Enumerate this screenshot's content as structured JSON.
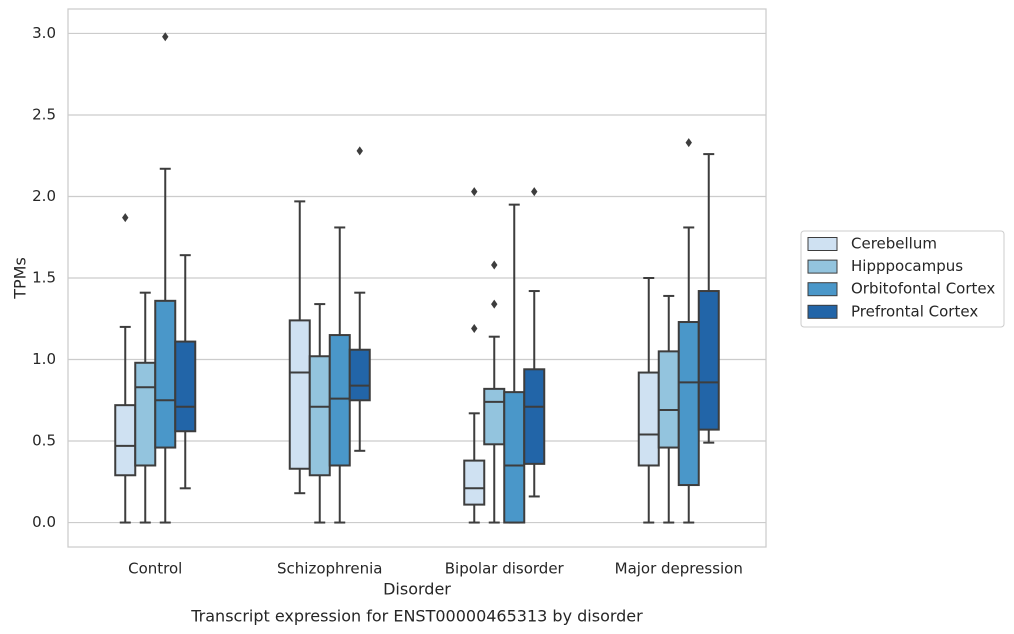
{
  "chart_data": {
    "type": "box",
    "xlabel": "Disorder",
    "ylabel": "TPMs",
    "caption": "Transcript expression for ENST00000465313 by disorder",
    "ylim": [
      -0.15,
      3.15
    ],
    "yticks": [
      "0.0",
      "0.5",
      "1.0",
      "1.5",
      "2.0",
      "2.5",
      "3.0"
    ],
    "grid": "horizontal",
    "legend_position": "right",
    "categories": [
      "Control",
      "Schizophrenia",
      "Bipolar disorder",
      "Major depression"
    ],
    "series": [
      {
        "name": "Cerebellum",
        "color": "#cfe1f2",
        "boxes": [
          {
            "whisker_low": 0.0,
            "q1": 0.29,
            "median": 0.47,
            "q3": 0.72,
            "whisker_high": 1.2,
            "outliers": [
              1.87
            ]
          },
          {
            "whisker_low": 0.18,
            "q1": 0.33,
            "median": 0.92,
            "q3": 1.24,
            "whisker_high": 1.97,
            "outliers": []
          },
          {
            "whisker_low": 0.0,
            "q1": 0.11,
            "median": 0.21,
            "q3": 0.38,
            "whisker_high": 0.67,
            "outliers": [
              1.19,
              2.03
            ]
          },
          {
            "whisker_low": 0.0,
            "q1": 0.35,
            "median": 0.54,
            "q3": 0.92,
            "whisker_high": 1.5,
            "outliers": []
          }
        ]
      },
      {
        "name": "Hipppocampus",
        "color": "#93c4de",
        "boxes": [
          {
            "whisker_low": 0.0,
            "q1": 0.35,
            "median": 0.83,
            "q3": 0.98,
            "whisker_high": 1.41,
            "outliers": []
          },
          {
            "whisker_low": 0.0,
            "q1": 0.29,
            "median": 0.71,
            "q3": 1.02,
            "whisker_high": 1.34,
            "outliers": []
          },
          {
            "whisker_low": 0.0,
            "q1": 0.48,
            "median": 0.74,
            "q3": 0.82,
            "whisker_high": 1.14,
            "outliers": [
              1.34,
              1.58
            ]
          },
          {
            "whisker_low": 0.0,
            "q1": 0.46,
            "median": 0.69,
            "q3": 1.05,
            "whisker_high": 1.39,
            "outliers": []
          }
        ]
      },
      {
        "name": "Orbitofontal Cortex",
        "color": "#4a97c9",
        "boxes": [
          {
            "whisker_low": 0.0,
            "q1": 0.46,
            "median": 0.75,
            "q3": 1.36,
            "whisker_high": 2.17,
            "outliers": [
              2.98
            ]
          },
          {
            "whisker_low": 0.0,
            "q1": 0.35,
            "median": 0.76,
            "q3": 1.15,
            "whisker_high": 1.81,
            "outliers": []
          },
          {
            "whisker_low": 0.0,
            "q1": 0.0,
            "median": 0.35,
            "q3": 0.8,
            "whisker_high": 1.95,
            "outliers": []
          },
          {
            "whisker_low": 0.0,
            "q1": 0.23,
            "median": 0.86,
            "q3": 1.23,
            "whisker_high": 1.81,
            "outliers": [
              2.33
            ]
          }
        ]
      },
      {
        "name": "Prefrontal Cortex",
        "color": "#2265a8",
        "boxes": [
          {
            "whisker_low": 0.21,
            "q1": 0.56,
            "median": 0.71,
            "q3": 1.11,
            "whisker_high": 1.64,
            "outliers": []
          },
          {
            "whisker_low": 0.44,
            "q1": 0.75,
            "median": 0.84,
            "q3": 1.06,
            "whisker_high": 1.41,
            "outliers": [
              2.28
            ]
          },
          {
            "whisker_low": 0.16,
            "q1": 0.36,
            "median": 0.71,
            "q3": 0.94,
            "whisker_high": 1.42,
            "outliers": [
              2.03
            ]
          },
          {
            "whisker_low": 0.49,
            "q1": 0.57,
            "median": 0.86,
            "q3": 1.42,
            "whisker_high": 2.26,
            "outliers": []
          }
        ]
      }
    ]
  }
}
